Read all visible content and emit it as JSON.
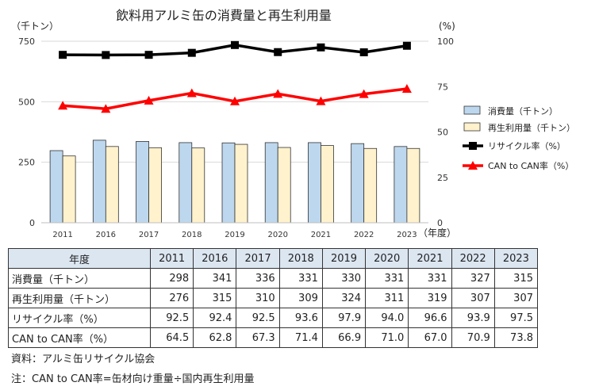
{
  "chart_data": {
    "type": "bar",
    "title": "飲料用アルミ缶の消費量と再生利用量",
    "left_unit": "（千トン）",
    "right_unit": "(%)",
    "x_unit": "（年度）",
    "categories": [
      "2011",
      "2016",
      "2017",
      "2018",
      "2019",
      "2020",
      "2021",
      "2022",
      "2023"
    ],
    "left_ticks": [
      "750",
      "500",
      "250",
      "0"
    ],
    "right_ticks": [
      "100",
      "75",
      "50",
      "25",
      "0"
    ],
    "ylim_left": [
      0,
      750
    ],
    "ylim_right": [
      0,
      100
    ],
    "grid": true,
    "legend_position": "right",
    "series": [
      {
        "name": "消費量（千トン）",
        "kind": "bar",
        "axis": "left",
        "color": "#bdd7ee",
        "values": [
          298,
          341,
          336,
          331,
          330,
          331,
          331,
          327,
          315
        ]
      },
      {
        "name": "再生利用量（千トン）",
        "kind": "bar",
        "axis": "left",
        "color": "#fff2cc",
        "values": [
          276,
          315,
          310,
          309,
          324,
          311,
          319,
          307,
          307
        ]
      },
      {
        "name": "リサイクル率（%）",
        "kind": "line",
        "axis": "right",
        "color": "#000000",
        "marker": "square",
        "values": [
          92.5,
          92.4,
          92.5,
          93.6,
          97.9,
          94.0,
          96.6,
          93.9,
          97.5
        ]
      },
      {
        "name": "CAN to CAN率（%）",
        "kind": "line",
        "axis": "right",
        "color": "#ff0000",
        "marker": "triangle",
        "values": [
          64.5,
          62.8,
          67.3,
          71.4,
          66.9,
          71.0,
          67.0,
          70.9,
          73.8
        ]
      }
    ]
  },
  "table": {
    "header_label": "年度",
    "rows": [
      {
        "label": "消費量（千トン）",
        "values": [
          "298",
          "341",
          "336",
          "331",
          "330",
          "331",
          "331",
          "327",
          "315"
        ]
      },
      {
        "label": "再生利用量（千トン）",
        "values": [
          "276",
          "315",
          "310",
          "309",
          "324",
          "311",
          "319",
          "307",
          "307"
        ]
      },
      {
        "label": "リサイクル率（%）",
        "values": [
          "92.5",
          "92.4",
          "92.5",
          "93.6",
          "97.9",
          "94.0",
          "96.6",
          "93.9",
          "97.5"
        ]
      },
      {
        "label": "CAN to CAN率（%）",
        "values": [
          "64.5",
          "62.8",
          "67.3",
          "71.4",
          "66.9",
          "71.0",
          "67.0",
          "70.9",
          "73.8"
        ]
      }
    ]
  },
  "notes": {
    "source": "資料：アルミ缶リサイクル協会",
    "note": "注：CAN to CAN率=缶材向け重量÷国内再生利用量"
  }
}
